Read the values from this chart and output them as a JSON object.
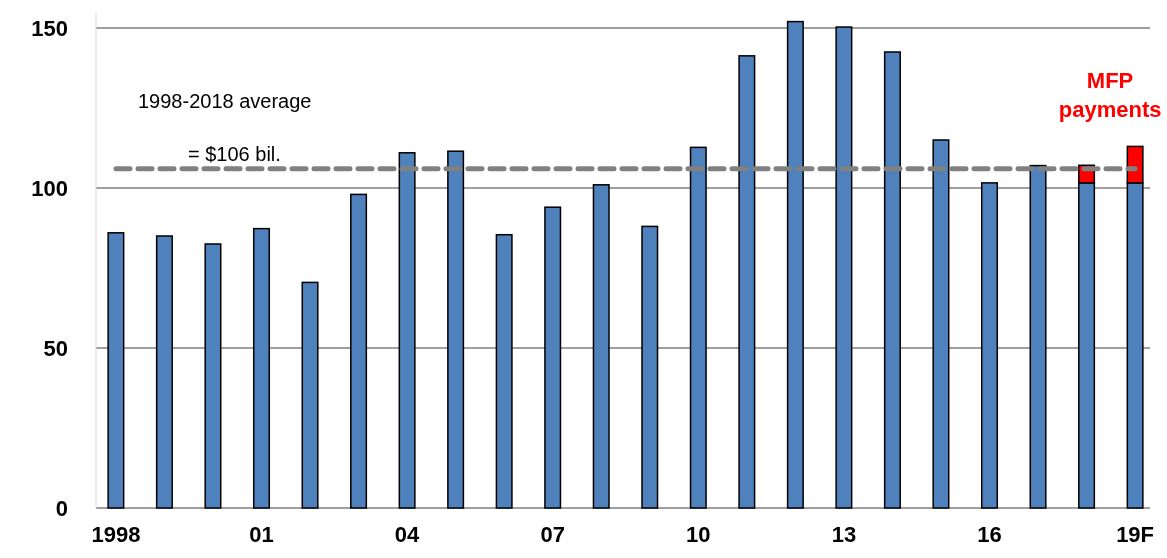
{
  "chart_data": {
    "type": "bar",
    "stacked": true,
    "categories": [
      "1998",
      null,
      null,
      "01",
      null,
      null,
      "04",
      null,
      null,
      "07",
      null,
      null,
      "10",
      null,
      null,
      "13",
      null,
      null,
      "16",
      null,
      null,
      "19F"
    ],
    "series": [
      {
        "color": "#4f81bd",
        "values": [
          86,
          85,
          82.5,
          87.3,
          70.5,
          98,
          111,
          111.5,
          85.4,
          94,
          101,
          88,
          112.7,
          141.3,
          152,
          150.3,
          142.5,
          115,
          101.6,
          107,
          101.6,
          101.6
        ]
      },
      {
        "name": "MFP payments",
        "color": "#ff0000",
        "values": [
          null,
          null,
          null,
          null,
          null,
          null,
          null,
          null,
          null,
          null,
          null,
          null,
          null,
          null,
          null,
          null,
          null,
          null,
          null,
          null,
          5.5,
          11.4
        ]
      }
    ],
    "ylim": [
      0,
      155
    ],
    "yticks": [
      0,
      50,
      100,
      150
    ],
    "grid": "y",
    "ref_lines": [
      {
        "axis": "y",
        "value": 106,
        "color": "#808080",
        "line_style": "dashed"
      }
    ],
    "annotations": [
      "1998-2018 average",
      "= $106 bil."
    ]
  }
}
